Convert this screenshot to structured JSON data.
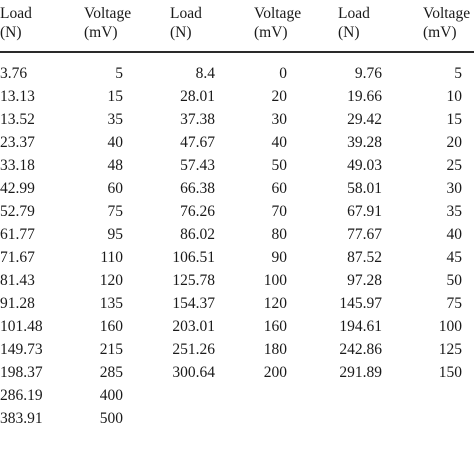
{
  "table": {
    "headers": [
      {
        "line1": "Load",
        "line2": "(N)"
      },
      {
        "line1": "Voltage",
        "line2": "(mV)"
      },
      {
        "line1": "Load",
        "line2": "(N)"
      },
      {
        "line1": "Voltage",
        "line2": "(mV)"
      },
      {
        "line1": "Load",
        "line2": "(N)"
      },
      {
        "line1": "Voltage",
        "line2": "(mV)"
      }
    ],
    "rows": [
      [
        "3.76",
        "5",
        "8.4",
        "0",
        "9.76",
        "5"
      ],
      [
        "13.13",
        "15",
        "28.01",
        "20",
        "19.66",
        "10"
      ],
      [
        "13.52",
        "35",
        "37.38",
        "30",
        "29.42",
        "15"
      ],
      [
        "23.37",
        "40",
        "47.67",
        "40",
        "39.28",
        "20"
      ],
      [
        "33.18",
        "48",
        "57.43",
        "50",
        "49.03",
        "25"
      ],
      [
        "42.99",
        "60",
        "66.38",
        "60",
        "58.01",
        "30"
      ],
      [
        "52.79",
        "75",
        "76.26",
        "70",
        "67.91",
        "35"
      ],
      [
        "61.77",
        "95",
        "86.02",
        "80",
        "77.67",
        "40"
      ],
      [
        "71.67",
        "110",
        "106.51",
        "90",
        "87.52",
        "45"
      ],
      [
        "81.43",
        "120",
        "125.78",
        "100",
        "97.28",
        "50"
      ],
      [
        "91.28",
        "135",
        "154.37",
        "120",
        "145.97",
        "75"
      ],
      [
        "101.48",
        "160",
        "203.01",
        "160",
        "194.61",
        "100"
      ],
      [
        "149.73",
        "215",
        "251.26",
        "180",
        "242.86",
        "125"
      ],
      [
        "198.37",
        "285",
        "300.64",
        "200",
        "291.89",
        "150"
      ],
      [
        "286.19",
        "400",
        "",
        "",
        "",
        ""
      ],
      [
        "383.91",
        "500",
        "",
        "",
        "",
        ""
      ]
    ]
  }
}
